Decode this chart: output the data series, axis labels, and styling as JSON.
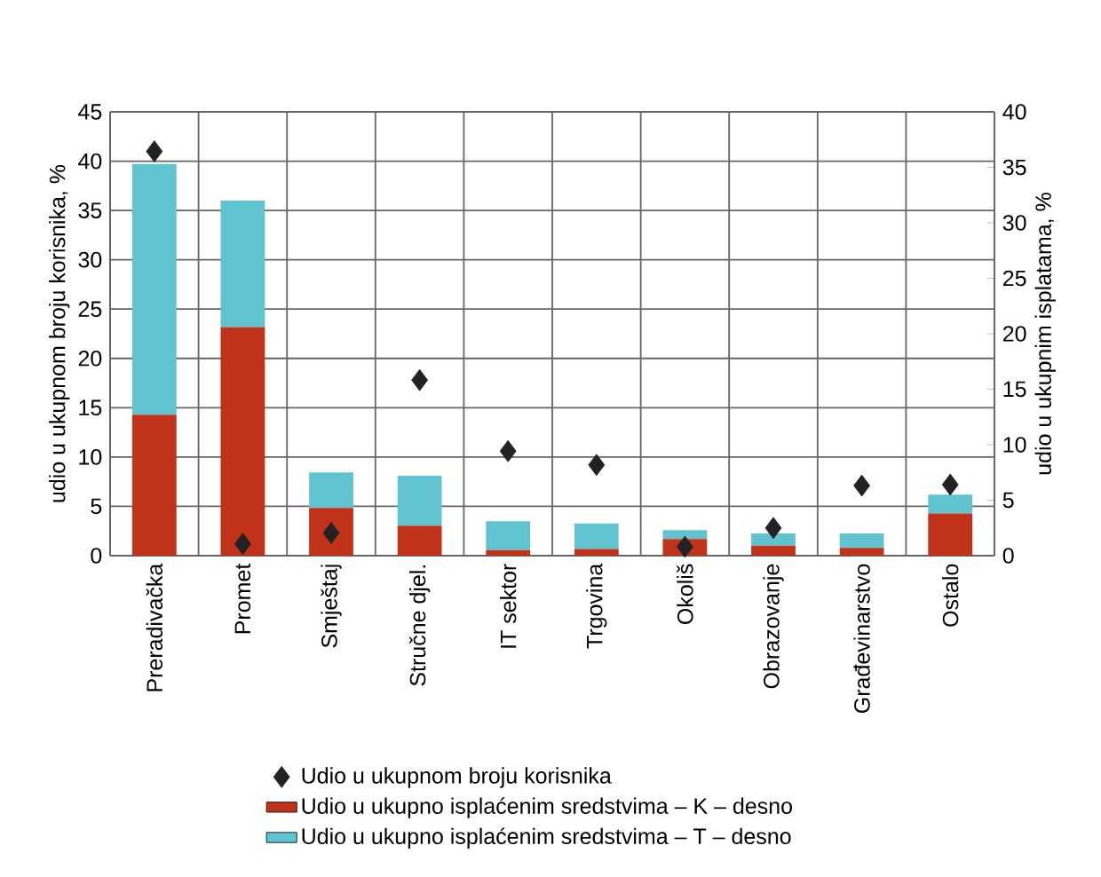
{
  "chart_data": {
    "type": "bar",
    "stacked": true,
    "categories": [
      "Preradivačka",
      "Promet",
      "Smještaj",
      "Stručne djel.",
      "IT sektor",
      "Trgovina",
      "Okoliš",
      "Obrazovanje",
      "Građevinarstvo",
      "Ostalo"
    ],
    "series": [
      {
        "name": "Udio u ukupnom broju korisnika",
        "type": "scatter",
        "marker": "diamond",
        "color": "#222222",
        "values": [
          41.0,
          1.2,
          2.3,
          17.8,
          10.6,
          9.2,
          0.9,
          2.8,
          7.1,
          7.2
        ]
      },
      {
        "name": "Udio u ukupno isplaćenim sredstvima – K – desno",
        "axis": "y2",
        "color": "#c0321a",
        "values": [
          12.7,
          20.6,
          4.3,
          2.7,
          0.5,
          0.6,
          1.5,
          0.9,
          0.7,
          3.8
        ]
      },
      {
        "name": "Udio u ukupno isplaćenim sredstvima – T – desno",
        "axis": "y2",
        "color": "#62c3d0",
        "values": [
          22.6,
          11.4,
          3.2,
          4.5,
          2.6,
          2.3,
          0.8,
          1.1,
          1.3,
          1.7
        ]
      }
    ],
    "ylabel": "udio u ukupnom broju korisnika, %",
    "y2label": "udio u ukupnim isplatama, %",
    "ylim": [
      0,
      45
    ],
    "yticks": [
      0,
      5,
      10,
      15,
      20,
      25,
      30,
      35,
      40,
      45
    ],
    "y2lim": [
      0,
      40
    ],
    "y2ticks": [
      0,
      5,
      10,
      15,
      20,
      25,
      30,
      35,
      40
    ],
    "grid": true,
    "legend": "bottom"
  }
}
